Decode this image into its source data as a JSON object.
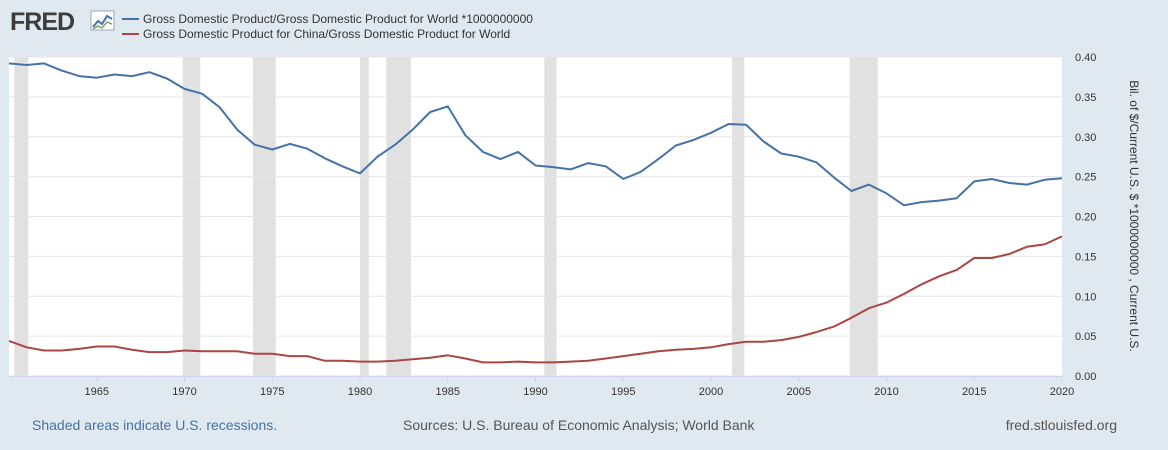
{
  "logo": {
    "text": "FRED"
  },
  "legend": [
    {
      "label": "Gross Domestic Product/Gross Domestic Product for World *1000000000",
      "color": "#4572a7"
    },
    {
      "label": "Gross Domestic Product for China/Gross Domestic Product for World",
      "color": "#aa4643"
    }
  ],
  "footer": {
    "left": "Shaded areas indicate U.S. recessions.",
    "center": "Sources: U.S. Bureau of Economic Analysis; World Bank",
    "right": "fred.stlouisfed.org"
  },
  "colors": {
    "background": "#e1e9f0",
    "plot": "#ffffff",
    "recession": "#e1e1e1",
    "grid": "#e6e6e6"
  },
  "chart_data": {
    "type": "line",
    "title": "",
    "xlabel": "",
    "ylabel": "Bil. of $/Current U.S. $ *1000000000 , Current U.S.",
    "xlim": [
      1960,
      2020
    ],
    "ylim": [
      0,
      0.4
    ],
    "x_ticks": [
      1965,
      1970,
      1975,
      1980,
      1985,
      1990,
      1995,
      2000,
      2005,
      2010,
      2015,
      2020
    ],
    "y_ticks": [
      "0.00",
      "0.05",
      "0.10",
      "0.15",
      "0.20",
      "0.25",
      "0.30",
      "0.35",
      "0.40"
    ],
    "y_axis_side": "right",
    "recessions": [
      [
        1960.3,
        1961.1
      ],
      [
        1969.9,
        1970.9
      ],
      [
        1973.9,
        1975.2
      ],
      [
        1980.0,
        1980.5
      ],
      [
        1981.5,
        1982.9
      ],
      [
        1990.5,
        1991.2
      ],
      [
        2001.2,
        2001.9
      ],
      [
        2007.9,
        2009.5
      ]
    ],
    "x": [
      1960,
      1961,
      1962,
      1963,
      1964,
      1965,
      1966,
      1967,
      1968,
      1969,
      1970,
      1971,
      1972,
      1973,
      1974,
      1975,
      1976,
      1977,
      1978,
      1979,
      1980,
      1981,
      1982,
      1983,
      1984,
      1985,
      1986,
      1987,
      1988,
      1989,
      1990,
      1991,
      1992,
      1993,
      1994,
      1995,
      1996,
      1997,
      1998,
      1999,
      2000,
      2001,
      2002,
      2003,
      2004,
      2005,
      2006,
      2007,
      2008,
      2009,
      2010,
      2011,
      2012,
      2013,
      2014,
      2015,
      2016,
      2017,
      2018,
      2019,
      2020
    ],
    "series": [
      {
        "name": "Gross Domestic Product/Gross Domestic Product for World *1000000000",
        "color": "#4572a7",
        "values": [
          0.392,
          0.39,
          0.392,
          0.383,
          0.376,
          0.374,
          0.378,
          0.376,
          0.381,
          0.373,
          0.36,
          0.354,
          0.337,
          0.309,
          0.29,
          0.284,
          0.291,
          0.285,
          0.273,
          0.263,
          0.254,
          0.275,
          0.29,
          0.309,
          0.331,
          0.338,
          0.302,
          0.281,
          0.272,
          0.281,
          0.264,
          0.262,
          0.259,
          0.267,
          0.263,
          0.247,
          0.256,
          0.272,
          0.289,
          0.296,
          0.305,
          0.316,
          0.315,
          0.294,
          0.279,
          0.275,
          0.268,
          0.249,
          0.232,
          0.24,
          0.229,
          0.214,
          0.218,
          0.22,
          0.223,
          0.244,
          0.247,
          0.242,
          0.24,
          0.246,
          0.248
        ]
      },
      {
        "name": "Gross Domestic Product for China/Gross Domestic Product for World",
        "color": "#aa4643",
        "values": [
          0.044,
          0.036,
          0.032,
          0.032,
          0.034,
          0.037,
          0.037,
          0.033,
          0.03,
          0.03,
          0.032,
          0.031,
          0.031,
          0.031,
          0.028,
          0.028,
          0.025,
          0.025,
          0.019,
          0.019,
          0.018,
          0.018,
          0.019,
          0.021,
          0.023,
          0.026,
          0.022,
          0.017,
          0.017,
          0.018,
          0.017,
          0.017,
          0.018,
          0.019,
          0.022,
          0.025,
          0.028,
          0.031,
          0.033,
          0.034,
          0.036,
          0.04,
          0.043,
          0.043,
          0.045,
          0.049,
          0.055,
          0.062,
          0.073,
          0.085,
          0.092,
          0.103,
          0.115,
          0.125,
          0.133,
          0.148,
          0.148,
          0.153,
          0.162,
          0.165,
          0.175
        ]
      }
    ]
  }
}
